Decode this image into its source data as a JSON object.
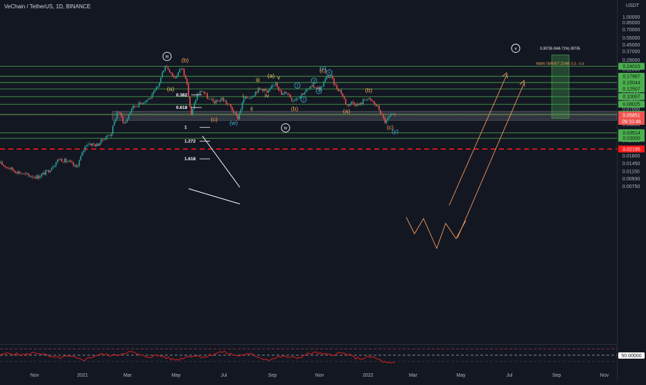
{
  "header": {
    "title": "VeChain / TetherUS, 1D, BINANCE",
    "currency_label": "USDT"
  },
  "colors": {
    "background": "#131722",
    "candle_up": "#26a69a",
    "candle_down": "#ef5350",
    "level_line": "#4caf50",
    "level_label_bg": "#4caf50",
    "support_red": "#ff1a1a",
    "white_label": "#ffffff",
    "orange_label": "#f7a35c",
    "teal_label": "#3fb6d6",
    "gold_label": "#e6c35c",
    "rsi_line": "#e11d1d",
    "target_zone": "#4caf50",
    "projection": "#f59a5a"
  },
  "chart_data": {
    "type": "candlestick",
    "title": "VeChain / TetherUS, 1D, BINANCE",
    "x_axis": {
      "tick_labels": [
        "Nov",
        "2021",
        "Mar",
        "May",
        "Jul",
        "Sep",
        "Nov",
        "2022",
        "Mar",
        "May",
        "Jul",
        "Sep",
        "Nov"
      ]
    },
    "y_axis": {
      "scale": "log",
      "unit": "USDT",
      "range": [
        0.0079,
        1.15
      ],
      "tick_labels": [
        "1.00000",
        "0.85000",
        "0.70000",
        "0.55000",
        "0.45000",
        "0.37000",
        "0.29000",
        "0.22000",
        "0.17000",
        "0.14000",
        "0.11000",
        "0.09000",
        "0.07000",
        "0.04500",
        "0.03500",
        "0.02800",
        "0.01800",
        "0.01450",
        "0.01150",
        "0.00930",
        "0.00750"
      ]
    },
    "price_levels": [
      {
        "label": "0.24015",
        "value": 0.24015,
        "style": "green"
      },
      {
        "label": "0.17987",
        "value": 0.17987,
        "style": "green"
      },
      {
        "label": "0.15044",
        "value": 0.15044,
        "style": "green"
      },
      {
        "label": "0.12507",
        "value": 0.12507,
        "style": "green"
      },
      {
        "label": "0.10007",
        "value": 0.10007,
        "style": "green"
      },
      {
        "label": "0.08025",
        "value": 0.08025,
        "style": "green"
      },
      {
        "label": "0.05977",
        "value": 0.05977,
        "style": "green"
      },
      {
        "label": "0.03514",
        "value": 0.03514,
        "style": "green"
      },
      {
        "label": "0.03000",
        "value": 0.03,
        "style": "green"
      },
      {
        "label": "0.02195",
        "value": 0.02195,
        "style": "red-dashed"
      }
    ],
    "current_price": {
      "label": "0.05851",
      "value": 0.05851,
      "countdown": "09:10:46"
    },
    "demand_zone": {
      "top": 0.065,
      "bottom": 0.0505
    },
    "target_zone": {
      "label": "MAIN TARGET ZONE 0.3 - 0.4",
      "top": 0.335,
      "bottom": 0.0535
    },
    "target_annotation": "0.30735 (646.71%) 30735",
    "fib_levels": [
      {
        "label": "0.382",
        "value": 0.105
      },
      {
        "label": "0.618",
        "value": 0.073
      },
      {
        "label": "1",
        "value": 0.041
      },
      {
        "label": "1.272",
        "value": 0.0275
      },
      {
        "label": "1.618",
        "value": 0.0165
      }
    ],
    "wave_labels": [
      {
        "text": "iii",
        "x": 241,
        "price": 0.32,
        "style": "circle-white"
      },
      {
        "text": "(b)",
        "x": 267,
        "price": 0.29,
        "style": "orange"
      },
      {
        "text": "(a)",
        "x": 246,
        "price": 0.125,
        "style": "gold"
      },
      {
        "text": "(c)",
        "x": 309,
        "price": 0.052,
        "style": "orange"
      },
      {
        "text": "(w)",
        "x": 337,
        "price": 0.047,
        "style": "teal"
      },
      {
        "text": "ii",
        "x": 363,
        "price": 0.071,
        "style": "gold"
      },
      {
        "text": "i",
        "x": 351,
        "price": 0.103,
        "style": "gold"
      },
      {
        "text": "iii",
        "x": 372,
        "price": 0.163,
        "style": "gold"
      },
      {
        "text": "(a)",
        "x": 391,
        "price": 0.183,
        "style": "gold"
      },
      {
        "text": "v",
        "x": 402,
        "price": 0.174,
        "style": "gold"
      },
      {
        "text": "iv",
        "x": 385,
        "price": 0.104,
        "style": "gold"
      },
      {
        "text": "iv",
        "x": 412,
        "price": 0.0405,
        "style": "circle-white"
      },
      {
        "text": "(b)",
        "x": 425,
        "price": 0.071,
        "style": "orange"
      },
      {
        "text": "1",
        "x": 429,
        "price": 0.138,
        "style": "circle-teal"
      },
      {
        "text": "2",
        "x": 438,
        "price": 0.092,
        "style": "circle-teal"
      },
      {
        "text": "3",
        "x": 453,
        "price": 0.158,
        "style": "circle-teal"
      },
      {
        "text": "4",
        "x": 460,
        "price": 0.118,
        "style": "circle-teal"
      },
      {
        "text": "(x)",
        "x": 466,
        "price": 0.23,
        "style": "teal"
      },
      {
        "text": "(c)",
        "x": 466,
        "price": 0.213,
        "style": "orange"
      },
      {
        "text": "5",
        "x": 475,
        "price": 0.201,
        "style": "circle-teal"
      },
      {
        "text": "(b)",
        "x": 532,
        "price": 0.121,
        "style": "orange"
      },
      {
        "text": "(a)",
        "x": 500,
        "price": 0.066,
        "style": "orange"
      },
      {
        "text": "(c)",
        "x": 563,
        "price": 0.041,
        "style": "orange"
      },
      {
        "text": "(y)",
        "x": 570,
        "price": 0.037,
        "style": "teal"
      },
      {
        "text": "v",
        "x": 744,
        "price": 0.405,
        "style": "circle-white"
      }
    ],
    "rsi": {
      "reference_label": "50.00000"
    }
  }
}
